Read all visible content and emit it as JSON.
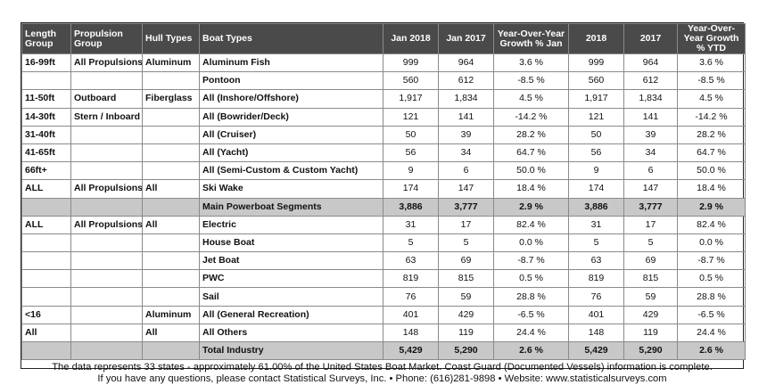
{
  "headers": {
    "length_group": "Length Group",
    "propulsion_group": "Propulsion Group",
    "hull_types": "Hull Types",
    "boat_types": "Boat Types",
    "jan2018": "Jan 2018",
    "jan2017": "Jan 2017",
    "yoy_jan": "Year-Over-Year Growth % Jan",
    "y2018": "2018",
    "y2017": "2017",
    "yoy_ytd": "Year-Over-Year Growth % YTD"
  },
  "section1_rows": [
    {
      "length": "16-99ft",
      "propulsion": "All Propulsions",
      "hull": "Aluminum",
      "boat": "Aluminum Fish",
      "jan2018": "999",
      "jan2017": "964",
      "yoy_jan": "3.6 %",
      "y2018": "999",
      "y2017": "964",
      "yoy_ytd": "3.6 %"
    },
    {
      "length": "",
      "propulsion": "",
      "hull": "",
      "boat": "Pontoon",
      "jan2018": "560",
      "jan2017": "612",
      "yoy_jan": "-8.5 %",
      "y2018": "560",
      "y2017": "612",
      "yoy_ytd": "-8.5 %"
    },
    {
      "length": "11-50ft",
      "propulsion": "Outboard",
      "hull": "Fiberglass",
      "boat": "All (Inshore/Offshore)",
      "jan2018": "1,917",
      "jan2017": "1,834",
      "yoy_jan": "4.5 %",
      "y2018": "1,917",
      "y2017": "1,834",
      "yoy_ytd": "4.5 %"
    },
    {
      "length": "14-30ft",
      "propulsion": "Stern / Inboard",
      "hull": "",
      "boat": "All (Bowrider/Deck)",
      "jan2018": "121",
      "jan2017": "141",
      "yoy_jan": "-14.2 %",
      "y2018": "121",
      "y2017": "141",
      "yoy_ytd": "-14.2 %"
    },
    {
      "length": "31-40ft",
      "propulsion": "",
      "hull": "",
      "boat": "All (Cruiser)",
      "jan2018": "50",
      "jan2017": "39",
      "yoy_jan": "28.2 %",
      "y2018": "50",
      "y2017": "39",
      "yoy_ytd": "28.2 %"
    },
    {
      "length": "41-65ft",
      "propulsion": "",
      "hull": "",
      "boat": "All (Yacht)",
      "jan2018": "56",
      "jan2017": "34",
      "yoy_jan": "64.7 %",
      "y2018": "56",
      "y2017": "34",
      "yoy_ytd": "64.7 %"
    },
    {
      "length": "66ft+",
      "propulsion": "",
      "hull": "",
      "boat": "All (Semi-Custom & Custom Yacht)",
      "jan2018": "9",
      "jan2017": "6",
      "yoy_jan": "50.0 %",
      "y2018": "9",
      "y2017": "6",
      "yoy_ytd": "50.0 %"
    },
    {
      "length": "ALL",
      "propulsion": "All Propulsions",
      "hull": "All",
      "boat": "Ski Wake",
      "jan2018": "174",
      "jan2017": "147",
      "yoy_jan": "18.4 %",
      "y2018": "174",
      "y2017": "147",
      "yoy_ytd": "18.4 %"
    }
  ],
  "main_total": {
    "label": "Main Powerboat Segments",
    "jan2018": "3,886",
    "jan2017": "3,777",
    "yoy_jan": "2.9 %",
    "y2018": "3,886",
    "y2017": "3,777",
    "yoy_ytd": "2.9 %"
  },
  "section2_rows": [
    {
      "length": "ALL",
      "propulsion": "All Propulsions",
      "hull": "All",
      "boat": "Electric",
      "jan2018": "31",
      "jan2017": "17",
      "yoy_jan": "82.4 %",
      "y2018": "31",
      "y2017": "17",
      "yoy_ytd": "82.4 %"
    },
    {
      "length": "",
      "propulsion": "",
      "hull": "",
      "boat": "House Boat",
      "jan2018": "5",
      "jan2017": "5",
      "yoy_jan": "0.0 %",
      "y2018": "5",
      "y2017": "5",
      "yoy_ytd": "0.0 %"
    },
    {
      "length": "",
      "propulsion": "",
      "hull": "",
      "boat": "Jet Boat",
      "jan2018": "63",
      "jan2017": "69",
      "yoy_jan": "-8.7 %",
      "y2018": "63",
      "y2017": "69",
      "yoy_ytd": "-8.7 %"
    },
    {
      "length": "",
      "propulsion": "",
      "hull": "",
      "boat": "PWC",
      "jan2018": "819",
      "jan2017": "815",
      "yoy_jan": "0.5 %",
      "y2018": "819",
      "y2017": "815",
      "yoy_ytd": "0.5 %"
    },
    {
      "length": "",
      "propulsion": "",
      "hull": "",
      "boat": "Sail",
      "jan2018": "76",
      "jan2017": "59",
      "yoy_jan": "28.8 %",
      "y2018": "76",
      "y2017": "59",
      "yoy_ytd": "28.8 %"
    },
    {
      "length": "<16",
      "propulsion": "",
      "hull": "Aluminum",
      "boat": "All (General Recreation)",
      "jan2018": "401",
      "jan2017": "429",
      "yoy_jan": "-6.5 %",
      "y2018": "401",
      "y2017": "429",
      "yoy_ytd": "-6.5 %"
    },
    {
      "length": "All",
      "propulsion": "",
      "hull": "All",
      "boat": "All Others",
      "jan2018": "148",
      "jan2017": "119",
      "yoy_jan": "24.4 %",
      "y2018": "148",
      "y2017": "119",
      "yoy_ytd": "24.4 %"
    }
  ],
  "industry_total": {
    "label": "Total Industry",
    "jan2018": "5,429",
    "jan2017": "5,290",
    "yoy_jan": "2.6 %",
    "y2018": "5,429",
    "y2017": "5,290",
    "yoy_ytd": "2.6 %"
  },
  "footer": {
    "line1": "The data represents 33 states - approximately 61.00% of the United States Boat Market.  Coast Guard (Documented Vessels) information is complete.",
    "line2": "If you have any questions, please contact Statistical Surveys, Inc.   •   Phone: (616)281-9898   •   Website: www.statisticalsurveys.com"
  }
}
